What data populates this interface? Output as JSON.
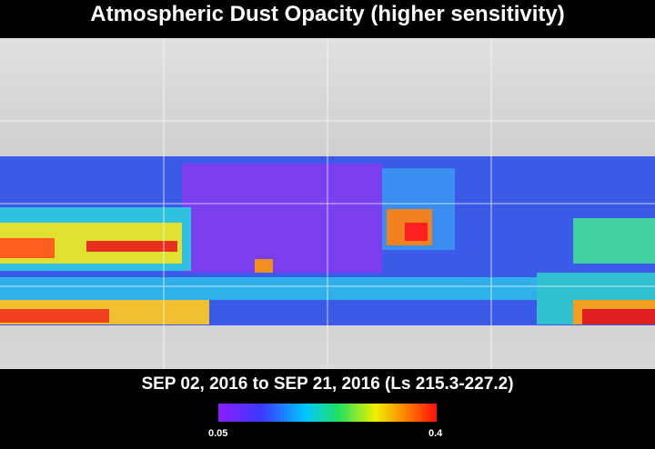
{
  "title": "Atmospheric Dust Opacity (higher sensitivity)",
  "subtitle": "SEP 02, 2016 to SEP 21, 2016 (Ls 215.3-227.2)",
  "colorbar": {
    "min_label": "0.05",
    "max_label": "0.4"
  }
}
